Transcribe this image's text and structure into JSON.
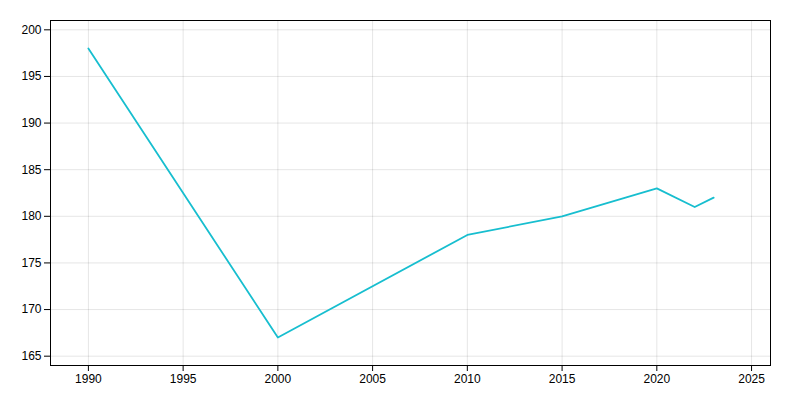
{
  "chart_data": {
    "type": "line",
    "x": [
      1990,
      2000,
      2010,
      2015,
      2020,
      2022,
      2023
    ],
    "values": [
      198,
      167,
      178,
      180,
      183,
      181,
      182
    ],
    "color": "#17BECF",
    "xlim": [
      1988,
      2026
    ],
    "ylim": [
      164,
      201
    ],
    "xticks": [
      1990,
      1995,
      2000,
      2005,
      2010,
      2015,
      2020,
      2025
    ],
    "yticks": [
      165,
      170,
      175,
      180,
      185,
      190,
      195,
      200
    ],
    "grid": true
  }
}
